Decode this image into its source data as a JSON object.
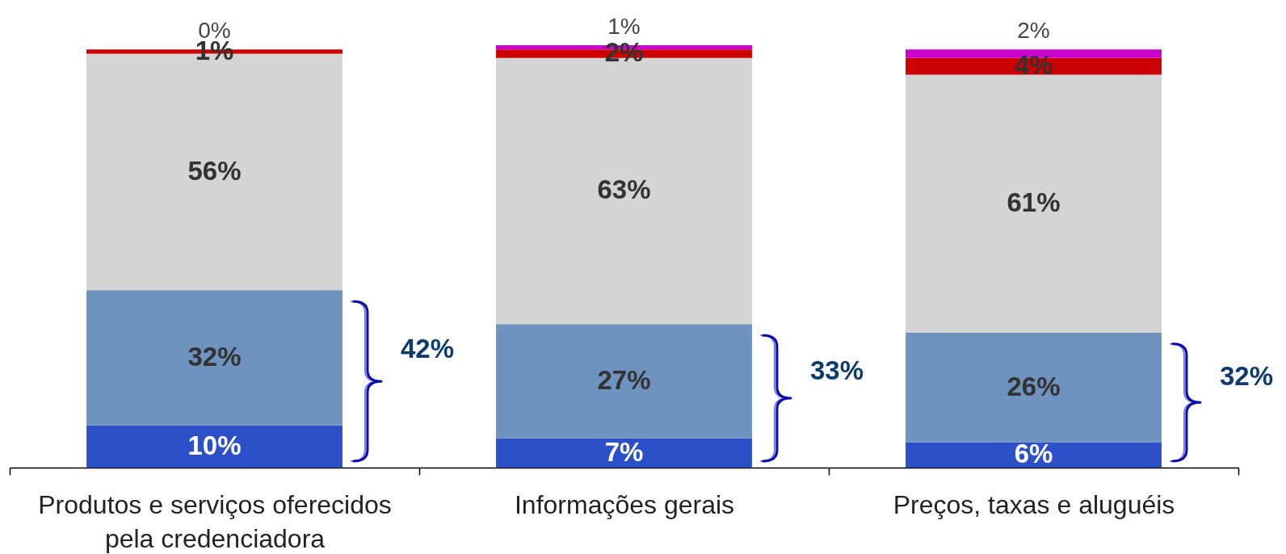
{
  "chart_data": {
    "type": "bar",
    "stacked": true,
    "categories": [
      "Produtos e serviços oferecidos pela credenciadora",
      "Informações gerais",
      "Preços, taxas e aluguéis"
    ],
    "series": [
      {
        "color": "#2b50c8",
        "values": [
          10,
          7,
          6
        ],
        "value_labels": [
          "10%",
          "7%",
          "6%"
        ]
      },
      {
        "color": "#6f93bf",
        "values": [
          32,
          27,
          26
        ],
        "value_labels": [
          "32%",
          "27%",
          "26%"
        ]
      },
      {
        "color": "#d4d4d4",
        "values": [
          56,
          63,
          61
        ],
        "value_labels": [
          "56%",
          "63%",
          "61%"
        ]
      },
      {
        "color": "#cc0000",
        "values": [
          1,
          2,
          4
        ],
        "value_labels": [
          "1%",
          "2%",
          "4%"
        ]
      },
      {
        "color": "#cc00cc",
        "values": [
          0,
          1,
          2
        ],
        "value_labels": [
          "0%",
          "1%",
          "2%"
        ]
      }
    ],
    "ylim": [
      0,
      100
    ],
    "tick_labels": "x",
    "annotations": [
      "42%",
      "33%",
      "32%"
    ]
  }
}
